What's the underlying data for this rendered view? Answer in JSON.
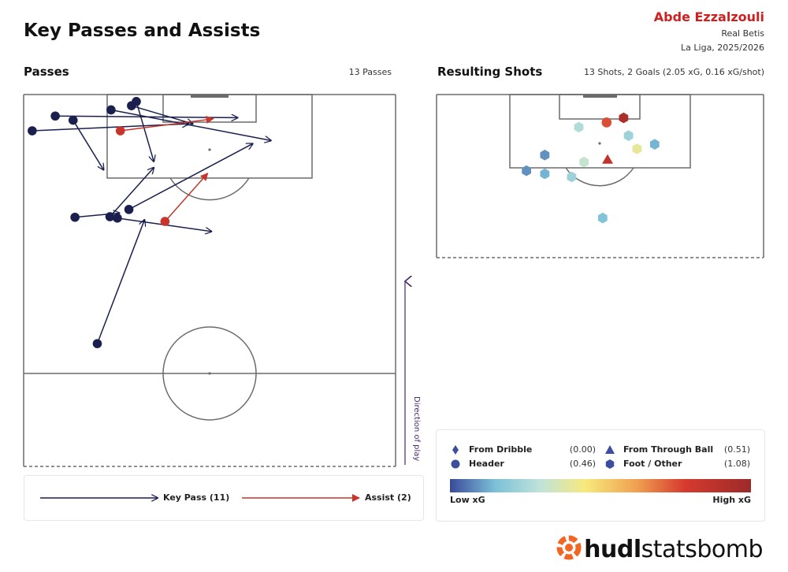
{
  "header": {
    "title": "Key Passes and Assists",
    "player": "Abde Ezzalzouli",
    "team": "Real Betis",
    "competition": "La Liga, 2025/2026"
  },
  "passes_panel": {
    "title": "Passes",
    "count_label": "13 Passes",
    "direction_label": "Direction of play"
  },
  "shots_panel": {
    "title": "Resulting Shots",
    "summary": "13 Shots, 2 Goals (2.05 xG, 0.16 xG/shot)"
  },
  "pass_legend": {
    "key_pass": "Key Pass (11)",
    "assist": "Assist (2)"
  },
  "shot_legend": {
    "from_dribble": "From Dribble",
    "from_dribble_xg": "(0.00)",
    "header": "Header",
    "header_xg": "(0.46)",
    "from_through_ball": "From Through Ball",
    "from_through_ball_xg": "(0.51)",
    "foot_other": "Foot / Other",
    "foot_other_xg": "(1.08)",
    "low": "Low xG",
    "high": "High xG"
  },
  "brand": {
    "part1": "hudl",
    "part2": "statsbomb"
  },
  "colors": {
    "key_pass": "#1a1f4e",
    "assist": "#c8352b",
    "pitch_line": "#6b6b6b",
    "direction": "#4a2a6a",
    "brand_orange": "#f26522",
    "xg_scale": [
      "#3a4a9a",
      "#7cc0d8",
      "#bfe3d9",
      "#f7e97c",
      "#f0a050",
      "#d63a2f",
      "#9c2a2a"
    ]
  },
  "chart_data": [
    {
      "type": "scatter",
      "name": "passes",
      "pitch": "half pitch, attacking upward",
      "units": "pitch fraction: x across 0-1 (left to right), y 0 = attacking goal line, 1 = halfway line",
      "passes": [
        {
          "type": "key_pass",
          "start": [
            0.085,
            0.077
          ],
          "end": [
            0.575,
            0.083
          ]
        },
        {
          "type": "key_pass",
          "start": [
            0.133,
            0.092
          ],
          "end": [
            0.215,
            0.27
          ]
        },
        {
          "type": "key_pass",
          "start": [
            0.023,
            0.13
          ],
          "end": [
            0.443,
            0.105
          ]
        },
        {
          "type": "key_pass",
          "start": [
            0.235,
            0.055
          ],
          "end": [
            0.665,
            0.165
          ]
        },
        {
          "type": "key_pass",
          "start": [
            0.29,
            0.04
          ],
          "end": [
            0.455,
            0.105
          ]
        },
        {
          "type": "key_pass",
          "start": [
            0.303,
            0.025
          ],
          "end": [
            0.35,
            0.24
          ]
        },
        {
          "type": "key_pass",
          "start": [
            0.283,
            0.412
          ],
          "end": [
            0.616,
            0.176
          ]
        },
        {
          "type": "key_pass",
          "start": [
            0.138,
            0.44
          ],
          "end": [
            0.258,
            0.425
          ]
        },
        {
          "type": "key_pass",
          "start": [
            0.232,
            0.438
          ],
          "end": [
            0.35,
            0.262
          ]
        },
        {
          "type": "key_pass",
          "start": [
            0.252,
            0.443
          ],
          "end": [
            0.505,
            0.491
          ]
        },
        {
          "type": "key_pass",
          "start": [
            0.198,
            0.893
          ],
          "end": [
            0.325,
            0.449
          ]
        },
        {
          "type": "assist",
          "start": [
            0.26,
            0.13
          ],
          "end": [
            0.51,
            0.087
          ]
        },
        {
          "type": "assist",
          "start": [
            0.38,
            0.455
          ],
          "end": [
            0.495,
            0.282
          ]
        }
      ]
    },
    {
      "type": "scatter",
      "name": "resulting shots",
      "units": "pitch fraction: x across 0-1, y 0 = goal line, 1 = bottom of shown area",
      "shots": [
        {
          "pos": [
            0.52,
            0.171
          ],
          "shape": "circle",
          "xg_level": 0.8
        },
        {
          "pos": [
            0.572,
            0.143
          ],
          "shape": "hexagon",
          "xg_level": 0.95
        },
        {
          "pos": [
            0.435,
            0.2
          ],
          "shape": "hexagon",
          "xg_level": 0.3
        },
        {
          "pos": [
            0.587,
            0.252
          ],
          "shape": "hexagon",
          "xg_level": 0.25
        },
        {
          "pos": [
            0.613,
            0.333
          ],
          "shape": "hexagon",
          "xg_level": 0.45
        },
        {
          "pos": [
            0.667,
            0.305
          ],
          "shape": "hexagon",
          "xg_level": 0.15
        },
        {
          "pos": [
            0.331,
            0.371
          ],
          "shape": "hexagon",
          "xg_level": 0.1
        },
        {
          "pos": [
            0.451,
            0.414
          ],
          "shape": "hexagon",
          "xg_level": 0.35
        },
        {
          "pos": [
            0.523,
            0.4
          ],
          "shape": "triangle",
          "xg_level": 0.9
        },
        {
          "pos": [
            0.275,
            0.467
          ],
          "shape": "hexagon",
          "xg_level": 0.1
        },
        {
          "pos": [
            0.331,
            0.486
          ],
          "shape": "hexagon",
          "xg_level": 0.15
        },
        {
          "pos": [
            0.413,
            0.505
          ],
          "shape": "hexagon",
          "xg_level": 0.25
        },
        {
          "pos": [
            0.508,
            0.757
          ],
          "shape": "hexagon",
          "xg_level": 0.18
        }
      ]
    }
  ]
}
